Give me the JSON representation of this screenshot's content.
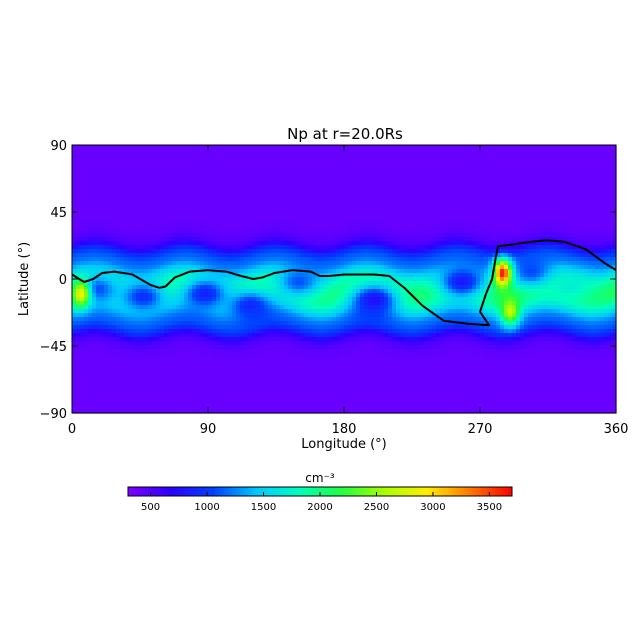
{
  "chart_data": {
    "type": "heatmap",
    "title": "Np at r=20.0Rs",
    "xlabel": "Longitude (°)",
    "ylabel": "Latitude (°)",
    "xlim": [
      0,
      360
    ],
    "ylim": [
      -90,
      90
    ],
    "x_ticks": [
      0,
      90,
      180,
      270,
      360
    ],
    "y_ticks": [
      -90,
      -45,
      0,
      45,
      90
    ],
    "x_tick_labels": [
      "0",
      "90",
      "180",
      "270",
      "360"
    ],
    "y_tick_labels": [
      "−90",
      "−45",
      "0",
      "45",
      "90"
    ],
    "colorbar": {
      "label": "cm⁻³",
      "range": [
        300,
        3700
      ],
      "ticks": [
        500,
        1000,
        1500,
        2000,
        2500,
        3000,
        3500
      ],
      "tick_labels": [
        "500",
        "1000",
        "1500",
        "2000",
        "2500",
        "3000",
        "3500"
      ],
      "colormap": [
        "#7f00ff",
        "#2a00ff",
        "#0040ff",
        "#00c8ff",
        "#00ffc0",
        "#20ff40",
        "#a8ff00",
        "#ffee00",
        "#ff7a00",
        "#ff0000"
      ],
      "placement": "bottom"
    },
    "background_density": 400,
    "belt": {
      "center_lat": -8,
      "density": 2100,
      "width_lat": 26
    },
    "features": [
      {
        "kind": "low",
        "lon": 16,
        "lat": -7,
        "density": 1050
      },
      {
        "kind": "low",
        "lon": 47,
        "lat": -12,
        "density": 950
      },
      {
        "kind": "low",
        "lon": 88,
        "lat": -10,
        "density": 850
      },
      {
        "kind": "low",
        "lon": 118,
        "lat": -18,
        "density": 900
      },
      {
        "kind": "low",
        "lon": 150,
        "lat": -2,
        "density": 1100
      },
      {
        "kind": "low",
        "lon": 200,
        "lat": -14,
        "density": 750
      },
      {
        "kind": "low",
        "lon": 258,
        "lat": -2,
        "density": 800
      },
      {
        "kind": "low",
        "lon": 305,
        "lat": 5,
        "density": 1050
      },
      {
        "kind": "low",
        "lon": 330,
        "lat": -5,
        "density": 1700
      },
      {
        "kind": "high",
        "lon": 6,
        "lat": -10,
        "density": 2900
      },
      {
        "kind": "high",
        "lon": 285,
        "lat": 4,
        "density": 3650
      },
      {
        "kind": "high",
        "lon": 290,
        "lat": -22,
        "density": 2700
      }
    ],
    "boundary_line": [
      [
        0,
        3
      ],
      [
        8,
        -2
      ],
      [
        14,
        0
      ],
      [
        20,
        4
      ],
      [
        28,
        5
      ],
      [
        40,
        3
      ],
      [
        52,
        -4
      ],
      [
        58,
        -6
      ],
      [
        62,
        -5
      ],
      [
        68,
        1
      ],
      [
        78,
        5
      ],
      [
        90,
        6
      ],
      [
        102,
        5
      ],
      [
        112,
        2
      ],
      [
        120,
        0
      ],
      [
        126,
        1
      ],
      [
        134,
        4
      ],
      [
        146,
        6
      ],
      [
        158,
        5
      ],
      [
        164,
        2
      ],
      [
        170,
        2
      ],
      [
        180,
        3
      ],
      [
        190,
        3
      ],
      [
        200,
        3
      ],
      [
        210,
        2
      ],
      [
        220,
        -6
      ],
      [
        232,
        -18
      ],
      [
        246,
        -28
      ],
      [
        262,
        -30
      ],
      [
        276,
        -31
      ],
      [
        270,
        -22
      ],
      [
        274,
        -10
      ],
      [
        278,
        0
      ],
      [
        280,
        12
      ],
      [
        282,
        22
      ],
      [
        290,
        23
      ],
      [
        304,
        25
      ],
      [
        314,
        26
      ],
      [
        326,
        25
      ],
      [
        340,
        20
      ],
      [
        352,
        11
      ],
      [
        360,
        6
      ]
    ]
  }
}
